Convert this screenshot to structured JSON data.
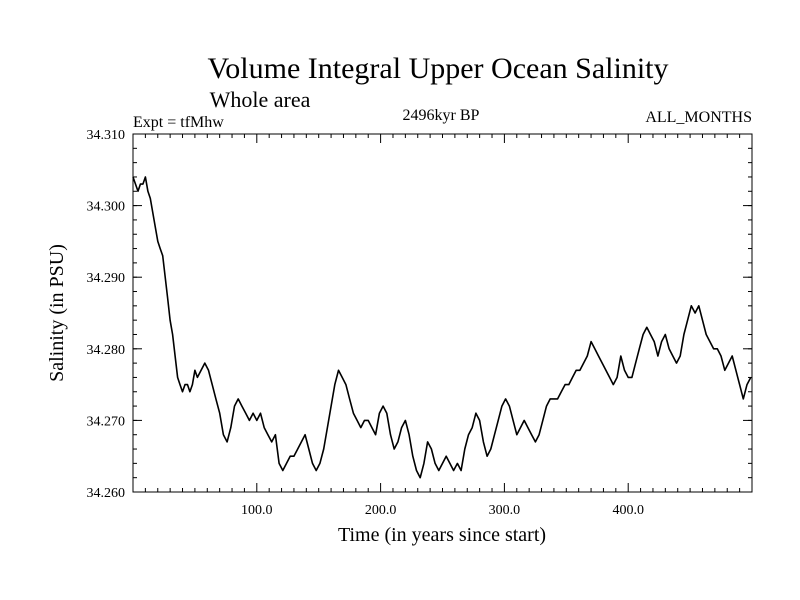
{
  "chart_data": {
    "type": "line",
    "title": "Volume Integral Upper Ocean Salinity",
    "subtitle": "Whole area",
    "annotations": {
      "left": "Expt = tfMhw",
      "center": "2496kyr BP",
      "right": "ALL_MONTHS"
    },
    "xlabel": "Time (in years since start)",
    "ylabel": "Salinity (in PSU)",
    "xlim": [
      0,
      500
    ],
    "ylim": [
      34.26,
      34.31
    ],
    "x_ticks": [
      100,
      200,
      300,
      400
    ],
    "x_tick_labels": [
      "100.0",
      "200.0",
      "300.0",
      "400.0"
    ],
    "y_ticks": [
      34.26,
      34.27,
      34.28,
      34.29,
      34.3,
      34.31
    ],
    "y_tick_labels": [
      "34.260",
      "34.270",
      "34.280",
      "34.290",
      "34.300",
      "34.310"
    ],
    "grid": false,
    "series": [
      {
        "name": "Salinity",
        "color": "#000000",
        "x": [
          0,
          2,
          4,
          6,
          8,
          10,
          12,
          14,
          16,
          18,
          20,
          22,
          24,
          26,
          28,
          30,
          32,
          34,
          36,
          38,
          40,
          42,
          44,
          46,
          48,
          50,
          52,
          55,
          58,
          61,
          64,
          67,
          70,
          73,
          76,
          79,
          82,
          85,
          88,
          91,
          94,
          97,
          100,
          103,
          106,
          109,
          112,
          115,
          118,
          121,
          124,
          127,
          130,
          133,
          136,
          139,
          142,
          145,
          148,
          151,
          154,
          157,
          160,
          163,
          166,
          169,
          172,
          175,
          178,
          181,
          184,
          187,
          190,
          193,
          196,
          199,
          202,
          205,
          208,
          211,
          214,
          217,
          220,
          223,
          226,
          229,
          232,
          235,
          238,
          241,
          244,
          247,
          250,
          253,
          256,
          259,
          262,
          265,
          268,
          271,
          274,
          277,
          280,
          283,
          286,
          289,
          292,
          295,
          298,
          301,
          304,
          307,
          310,
          313,
          316,
          319,
          322,
          325,
          328,
          331,
          334,
          337,
          340,
          343,
          346,
          349,
          352,
          355,
          358,
          361,
          364,
          367,
          370,
          373,
          376,
          379,
          382,
          385,
          388,
          391,
          394,
          397,
          400,
          403,
          406,
          409,
          412,
          415,
          418,
          421,
          424,
          427,
          430,
          433,
          436,
          439,
          442,
          445,
          448,
          451,
          454,
          457,
          460,
          463,
          466,
          469,
          472,
          475,
          478,
          481,
          484,
          487,
          490,
          493,
          496,
          499
        ],
        "values": [
          34.304,
          34.303,
          34.302,
          34.303,
          34.303,
          34.304,
          34.302,
          34.301,
          34.299,
          34.297,
          34.295,
          34.294,
          34.293,
          34.29,
          34.287,
          34.284,
          34.282,
          34.279,
          34.276,
          34.275,
          34.274,
          34.275,
          34.275,
          34.274,
          34.275,
          34.277,
          34.276,
          34.277,
          34.278,
          34.277,
          34.275,
          34.273,
          34.271,
          34.268,
          34.267,
          34.269,
          34.272,
          34.273,
          34.272,
          34.271,
          34.27,
          34.271,
          34.27,
          34.271,
          34.269,
          34.268,
          34.267,
          34.268,
          34.264,
          34.263,
          34.264,
          34.265,
          34.265,
          34.266,
          34.267,
          34.268,
          34.266,
          34.264,
          34.263,
          34.264,
          34.266,
          34.269,
          34.272,
          34.275,
          34.277,
          34.276,
          34.275,
          34.273,
          34.271,
          34.27,
          34.269,
          34.27,
          34.27,
          34.269,
          34.268,
          34.271,
          34.272,
          34.271,
          34.268,
          34.266,
          34.267,
          34.269,
          34.27,
          34.268,
          34.265,
          34.263,
          34.262,
          34.264,
          34.267,
          34.266,
          34.264,
          34.263,
          34.264,
          34.265,
          34.264,
          34.263,
          34.264,
          34.263,
          34.266,
          34.268,
          34.269,
          34.271,
          34.27,
          34.267,
          34.265,
          34.266,
          34.268,
          34.27,
          34.272,
          34.273,
          34.272,
          34.27,
          34.268,
          34.269,
          34.27,
          34.269,
          34.268,
          34.267,
          34.268,
          34.27,
          34.272,
          34.273,
          34.273,
          34.273,
          34.274,
          34.275,
          34.275,
          34.276,
          34.277,
          34.277,
          34.278,
          34.279,
          34.281,
          34.28,
          34.279,
          34.278,
          34.277,
          34.276,
          34.275,
          34.276,
          34.279,
          34.277,
          34.276,
          34.276,
          34.278,
          34.28,
          34.282,
          34.283,
          34.282,
          34.281,
          34.279,
          34.281,
          34.282,
          34.28,
          34.279,
          34.278,
          34.279,
          34.282,
          34.284,
          34.286,
          34.285,
          34.286,
          34.284,
          34.282,
          34.281,
          34.28,
          34.28,
          34.279,
          34.277,
          34.278,
          34.279,
          34.277,
          34.275,
          34.273,
          34.275,
          34.276
        ]
      }
    ]
  }
}
